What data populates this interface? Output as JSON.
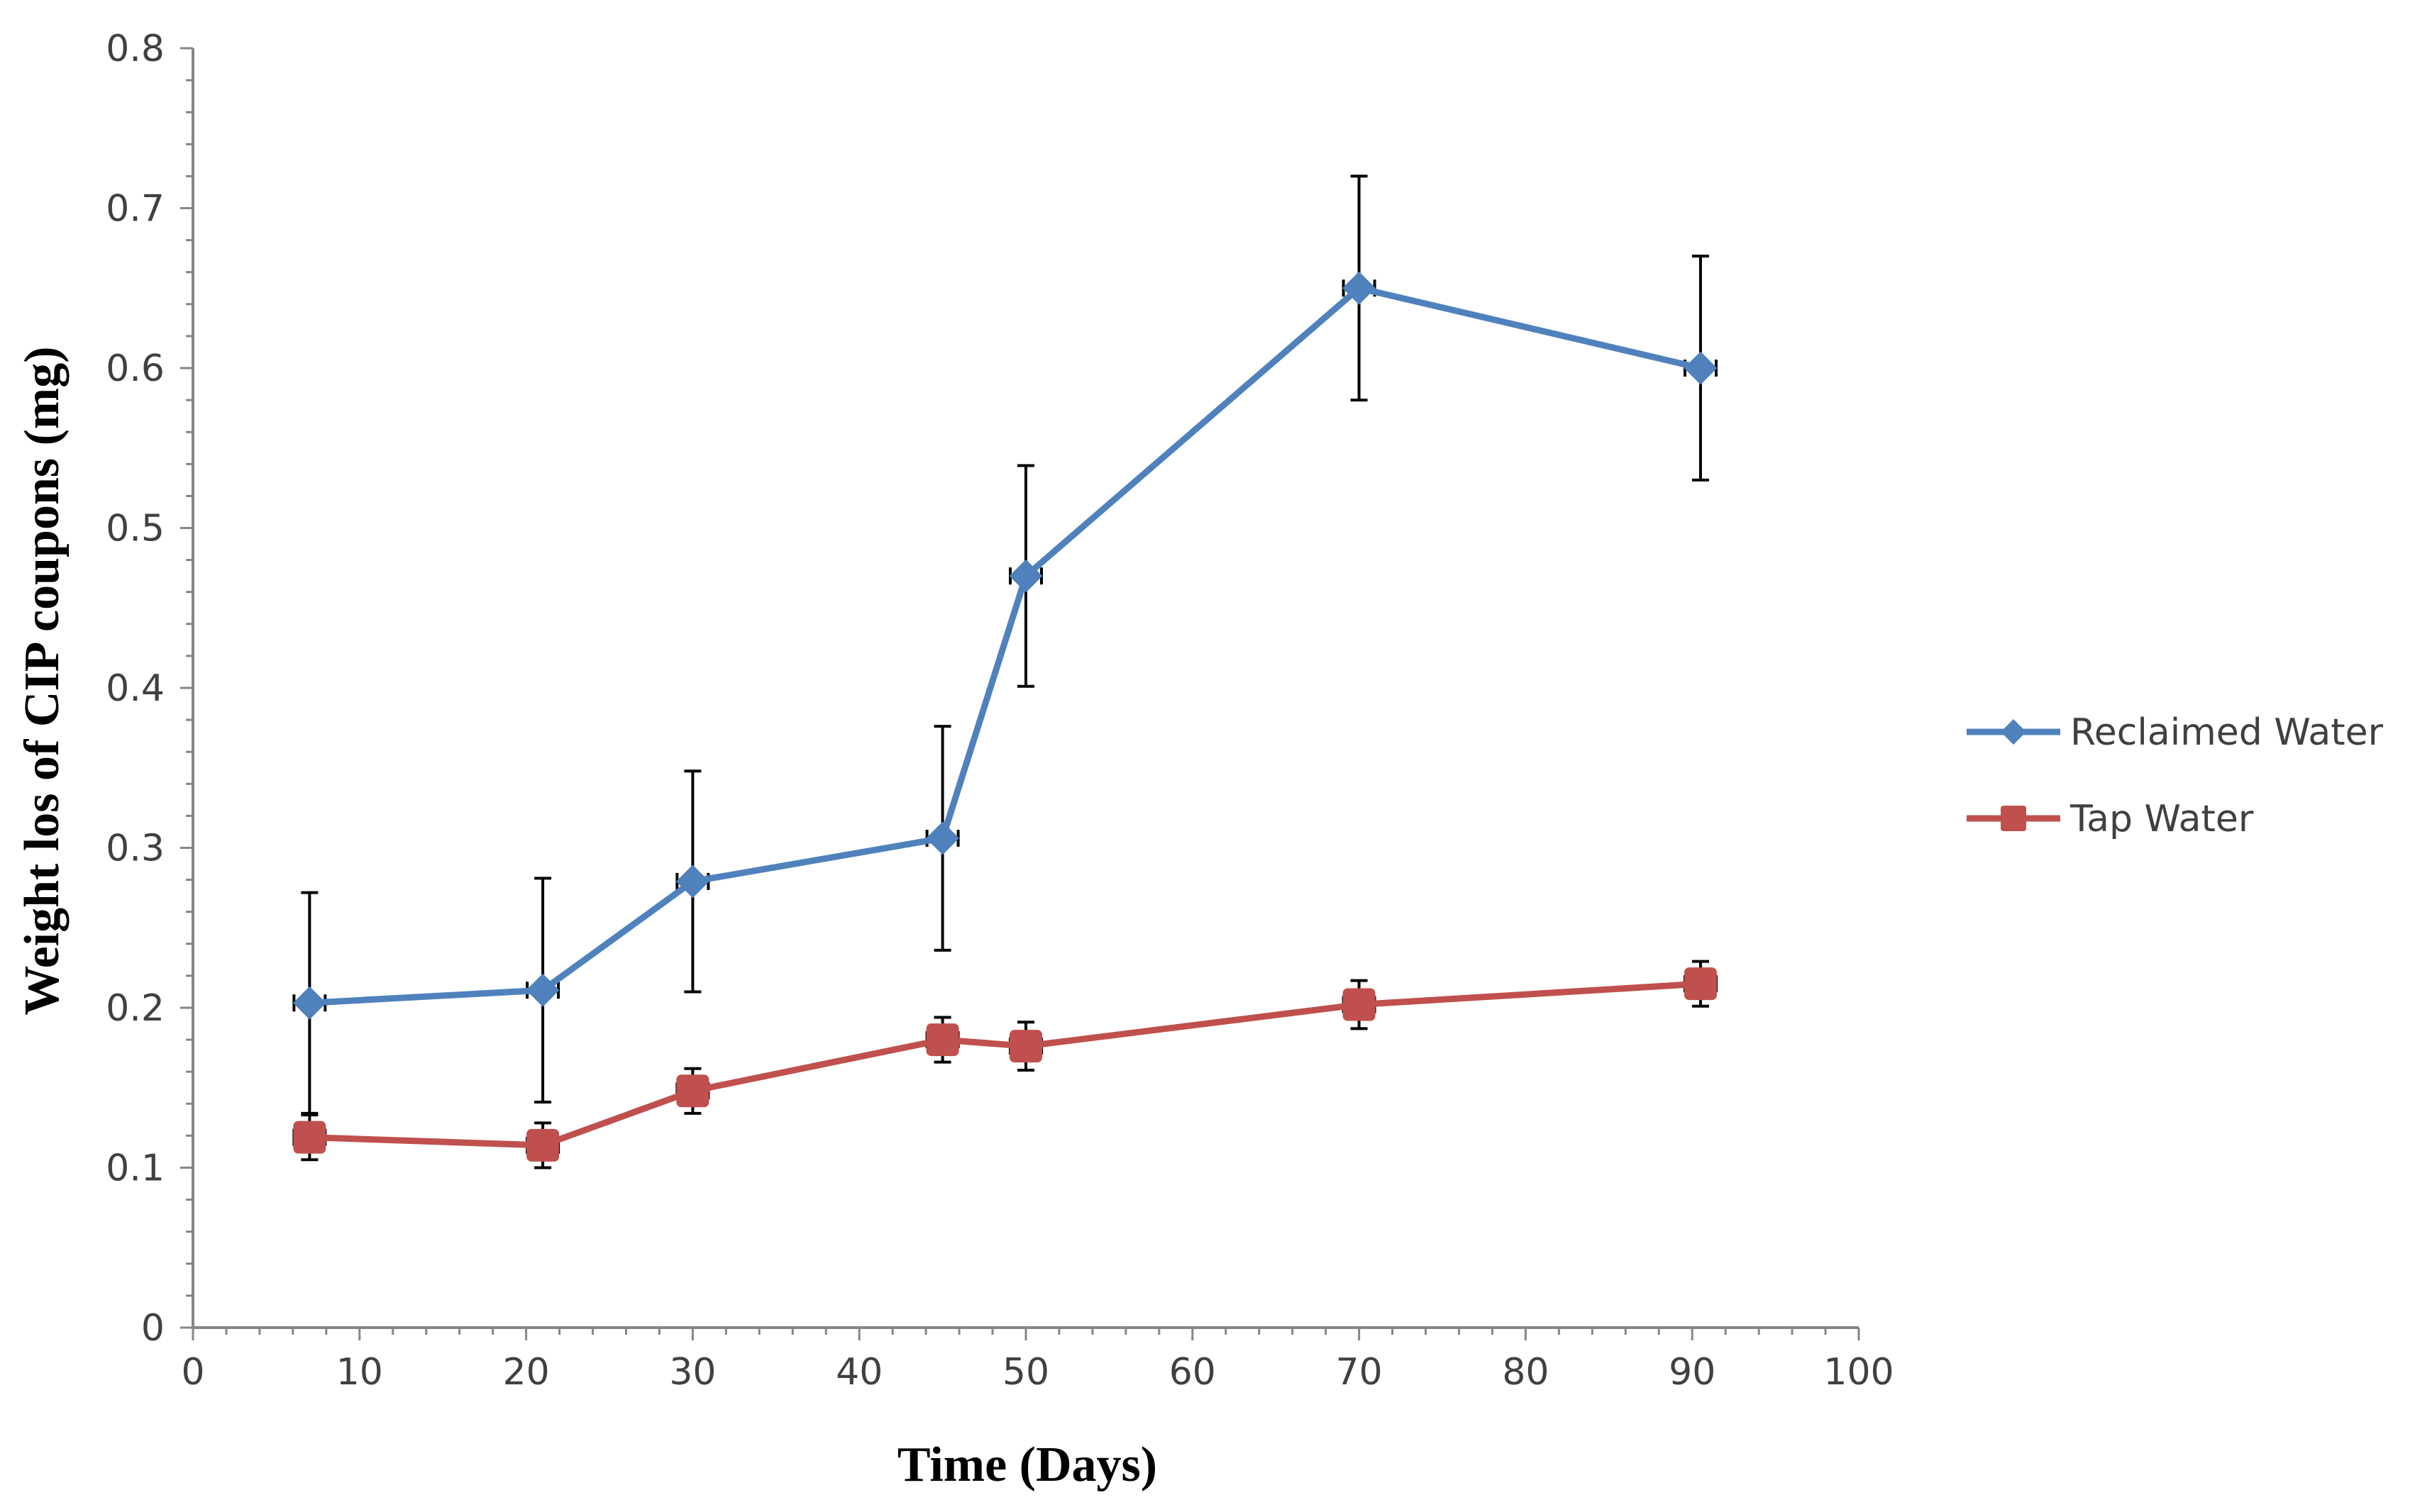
{
  "chart_data": {
    "type": "line",
    "title": "",
    "xlabel": "Time (Days)",
    "ylabel": "Weight los of CIP coupons (mg)",
    "xlim": [
      0,
      100
    ],
    "ylim": [
      0,
      0.8
    ],
    "x_ticks": [
      0,
      10,
      20,
      30,
      40,
      50,
      60,
      70,
      80,
      90,
      100
    ],
    "x_tick_labels": [
      "0",
      "10",
      "20",
      "30",
      "40",
      "50",
      "60",
      "70",
      "80",
      "90",
      "100"
    ],
    "y_ticks": [
      0,
      0.1,
      0.2,
      0.3,
      0.4,
      0.5,
      0.6,
      0.7,
      0.8
    ],
    "y_tick_labels": [
      "0",
      "0.1",
      "0.2",
      "0.3",
      "0.4",
      "0.5",
      "0.6",
      "0.7",
      "0.8"
    ],
    "grid": false,
    "legend_position": "right",
    "series": [
      {
        "name": "Reclaimed Water",
        "marker": "diamond",
        "color": "#4f81bd",
        "x": [
          7,
          21,
          30,
          45,
          50,
          70,
          90.5
        ],
        "y": [
          0.203,
          0.211,
          0.279,
          0.306,
          0.47,
          0.65,
          0.6
        ],
        "error": [
          0.069,
          0.07,
          0.069,
          0.07,
          0.069,
          0.07,
          0.07
        ]
      },
      {
        "name": "Tap Water",
        "marker": "square",
        "color": "#c0504d",
        "x": [
          7,
          21,
          30,
          45,
          50,
          70,
          90.5
        ],
        "y": [
          0.119,
          0.114,
          0.148,
          0.18,
          0.176,
          0.202,
          0.215
        ],
        "error": [
          0.014,
          0.014,
          0.014,
          0.014,
          0.015,
          0.015,
          0.014
        ]
      }
    ]
  }
}
